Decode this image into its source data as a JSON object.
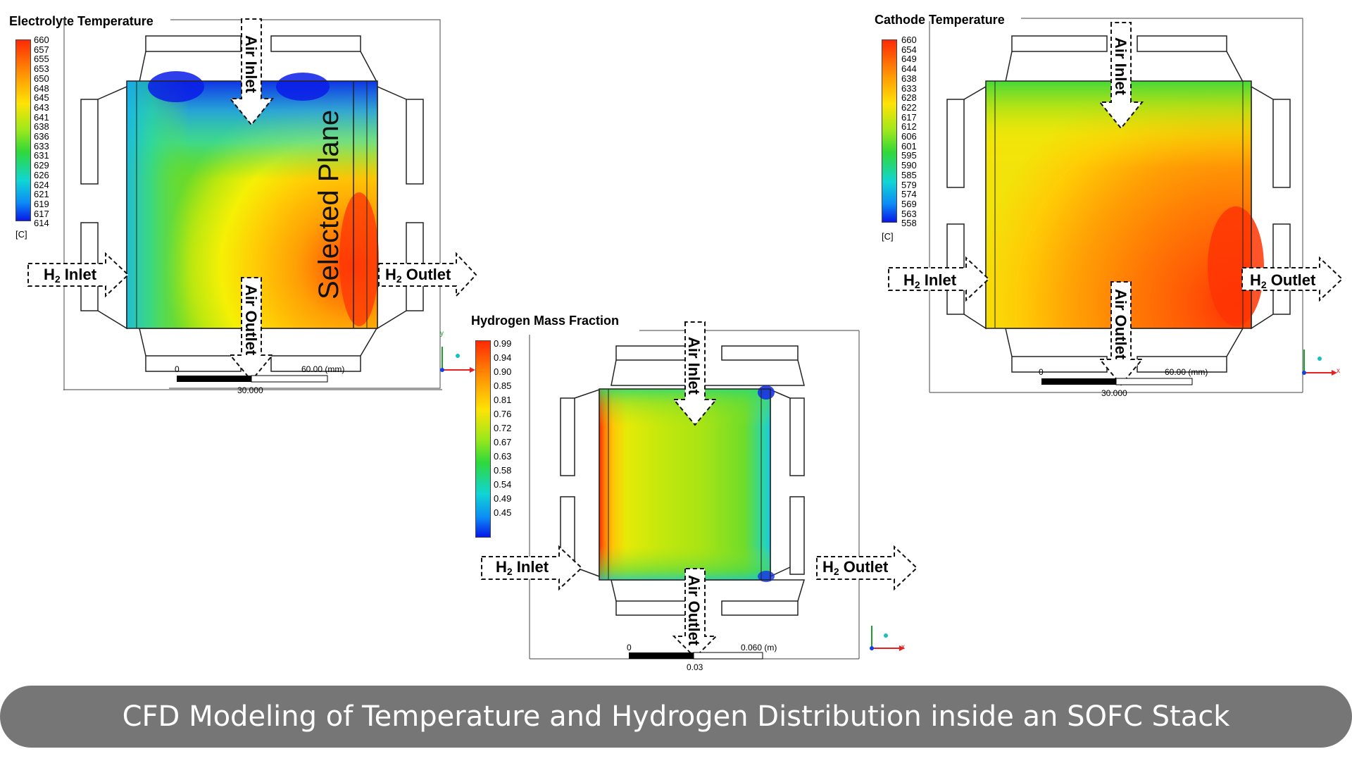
{
  "panels": {
    "electrolyte": {
      "title": "Electrolyte Temperature",
      "legend_values": [
        "660",
        "657",
        "655",
        "653",
        "650",
        "648",
        "645",
        "643",
        "641",
        "638",
        "636",
        "633",
        "631",
        "629",
        "626",
        "624",
        "621",
        "619",
        "617",
        "614"
      ],
      "unit": "[C]",
      "scale_left": "0",
      "scale_mid": "30.000",
      "scale_right": "60.00  (mm)",
      "annotation": "Selected Plane"
    },
    "cathode": {
      "title": "Cathode Temperature",
      "legend_values": [
        "660",
        "654",
        "649",
        "644",
        "638",
        "633",
        "628",
        "622",
        "617",
        "612",
        "606",
        "601",
        "595",
        "590",
        "585",
        "579",
        "574",
        "569",
        "563",
        "558"
      ],
      "unit": "[C]",
      "scale_left": "0",
      "scale_mid": "30.000",
      "scale_right": "60.00  (mm)"
    },
    "hydrogen": {
      "title": "Hydrogen Mass Fraction",
      "legend_values": [
        "0.99",
        "0.94",
        "0.90",
        "0.85",
        "0.81",
        "0.76",
        "0.72",
        "0.67",
        "0.63",
        "0.58",
        "0.54",
        "0.49",
        "0.45"
      ],
      "scale_left": "0",
      "scale_mid": "0.03",
      "scale_right": "0.060  (m)"
    }
  },
  "flow_labels": {
    "h2_inlet_main": "H",
    "h2_sub": "2",
    "inlet_word": " Inlet",
    "outlet_word": " Outlet",
    "air_inlet": "Air Inlet",
    "air_outlet": "Air Outlet"
  },
  "axes": {
    "x": "x",
    "y": "y"
  },
  "banner": "CFD Modeling of Temperature and Hydrogen Distribution inside an SOFC Stack",
  "colors": {
    "banner_bg": "#767676",
    "hot": "#ff3a0a",
    "cold": "#0a1cff"
  }
}
